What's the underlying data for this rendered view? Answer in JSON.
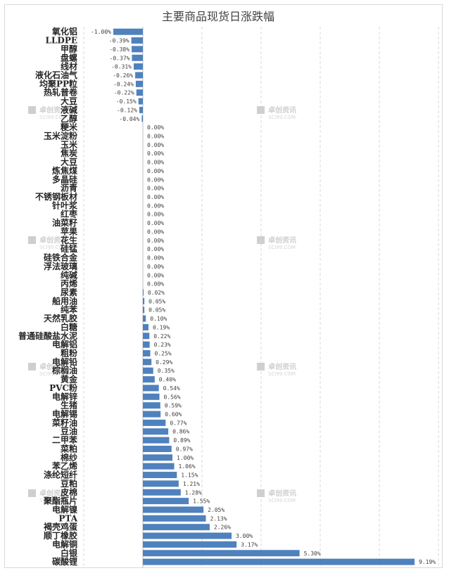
{
  "chart_data": {
    "type": "bar",
    "orientation": "horizontal",
    "title": "主要商品现货日涨跌幅",
    "categories": [
      "氧化铝",
      "LLDPE",
      "甲醇",
      "盘螺",
      "线材",
      "液化石油气",
      "均聚PP粒",
      "热轧普卷",
      "大豆",
      "液碱",
      "乙醇",
      "粳米",
      "玉米淀粉",
      "玉米",
      "焦炭",
      "大豆",
      "炼焦煤",
      "多晶硅",
      "沥青",
      "不锈钢板材",
      "针叶浆",
      "红枣",
      "油菜籽",
      "苹果",
      "花生",
      "硅锰",
      "硅铁合金",
      "浮法玻璃",
      "纯碱",
      "丙烯",
      "尿素",
      "船用油",
      "纯苯",
      "天然乳胶",
      "白糖",
      "普通硅酸盐水泥",
      "电解铝",
      "粗粉",
      "电解铅",
      "棕榈油",
      "黄金",
      "PVC粉",
      "电解锌",
      "生猪",
      "电解锡",
      "菜籽油",
      "豆油",
      "二甲苯",
      "菜粕",
      "棉纱",
      "苯乙烯",
      "涤纶短纤",
      "豆粕",
      "皮棉",
      "聚酯瓶片",
      "电解镍",
      "PTA",
      "褐壳鸡蛋",
      "顺丁橡胶",
      "电解铜",
      "白银",
      "碳酸锂"
    ],
    "values": [
      -1.0,
      -0.39,
      -0.38,
      -0.37,
      -0.31,
      -0.26,
      -0.24,
      -0.22,
      -0.15,
      -0.12,
      -0.04,
      0.0,
      0.0,
      0.0,
      0.0,
      0.0,
      0.0,
      0.0,
      0.0,
      0.0,
      0.0,
      0.0,
      0.0,
      0.0,
      0.0,
      0.0,
      0.0,
      0.0,
      0.0,
      0.0,
      0.02,
      0.05,
      0.05,
      0.1,
      0.19,
      0.22,
      0.23,
      0.25,
      0.29,
      0.35,
      0.4,
      0.54,
      0.56,
      0.59,
      0.6,
      0.77,
      0.86,
      0.89,
      0.97,
      1.0,
      1.06,
      1.15,
      1.21,
      1.28,
      1.55,
      2.05,
      2.13,
      2.26,
      3.0,
      3.17,
      5.3,
      9.19
    ],
    "labels": [
      "-1.00%",
      "-0.39%",
      "-0.38%",
      "-0.37%",
      "-0.31%",
      "-0.26%",
      "-0.24%",
      "-0.22%",
      "-0.15%",
      "-0.12%",
      "-0.04%",
      "0.00%",
      "0.00%",
      "0.00%",
      "0.00%",
      "0.00%",
      "0.00%",
      "0.00%",
      "0.00%",
      "0.00%",
      "0.00%",
      "0.00%",
      "0.00%",
      "0.00%",
      "0.00%",
      "0.00%",
      "0.00%",
      "0.00%",
      "0.00%",
      "0.00%",
      "0.02%",
      "0.05%",
      "0.05%",
      "0.10%",
      "0.19%",
      "0.22%",
      "0.23%",
      "0.25%",
      "0.29%",
      "0.35%",
      "0.40%",
      "0.54%",
      "0.56%",
      "0.59%",
      "0.60%",
      "0.77%",
      "0.86%",
      "0.89%",
      "0.97%",
      "1.00%",
      "1.06%",
      "1.15%",
      "1.21%",
      "1.28%",
      "1.55%",
      "2.05%",
      "2.13%",
      "2.26%",
      "3.00%",
      "3.17%",
      "5.30%",
      "9.19%"
    ],
    "xlim": [
      -2,
      10
    ],
    "gridlines": [
      -2,
      0,
      2,
      4,
      6,
      8,
      10
    ],
    "grid": true,
    "legend": "none",
    "bar_color": "#4f81bd",
    "grid_color": "#d9d9d9"
  },
  "watermark": {
    "name": "卓创资讯",
    "site": "SCI99.COM",
    "color": "#cfcfcf"
  }
}
